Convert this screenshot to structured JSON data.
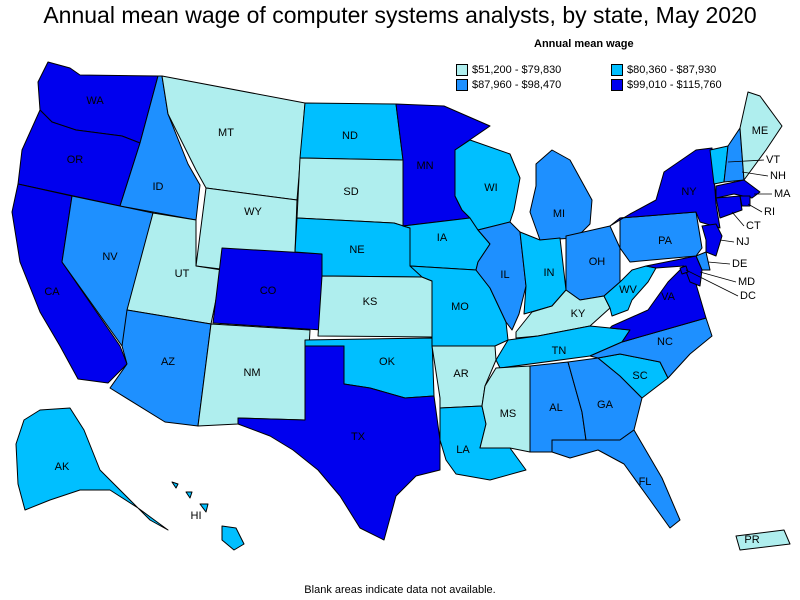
{
  "title": "Annual mean wage of computer systems analysts, by state, May 2020",
  "legend": {
    "title": "Annual mean wage",
    "items": [
      {
        "range": "$51,200 - $79,830",
        "color": "#afeeee"
      },
      {
        "range": "$80,360 - $87,930",
        "color": "#00bfff"
      },
      {
        "range": "$87,960 - $98,470",
        "color": "#1e90ff"
      },
      {
        "range": "$99,010 - $115,760",
        "color": "#0000ee"
      }
    ]
  },
  "footnote": "Blank areas indicate data not available.",
  "states": [
    {
      "code": "WA",
      "bin": 3
    },
    {
      "code": "OR",
      "bin": 3
    },
    {
      "code": "CA",
      "bin": 3
    },
    {
      "code": "ID",
      "bin": 2
    },
    {
      "code": "NV",
      "bin": 2
    },
    {
      "code": "MT",
      "bin": 0
    },
    {
      "code": "WY",
      "bin": 0
    },
    {
      "code": "UT",
      "bin": 0
    },
    {
      "code": "AZ",
      "bin": 2
    },
    {
      "code": "CO",
      "bin": 3
    },
    {
      "code": "NM",
      "bin": 0
    },
    {
      "code": "ND",
      "bin": 1
    },
    {
      "code": "SD",
      "bin": 0
    },
    {
      "code": "NE",
      "bin": 1
    },
    {
      "code": "KS",
      "bin": 0
    },
    {
      "code": "OK",
      "bin": 1
    },
    {
      "code": "TX",
      "bin": 3
    },
    {
      "code": "MN",
      "bin": 3
    },
    {
      "code": "IA",
      "bin": 1
    },
    {
      "code": "MO",
      "bin": 1
    },
    {
      "code": "AR",
      "bin": 0
    },
    {
      "code": "LA",
      "bin": 1
    },
    {
      "code": "WI",
      "bin": 1
    },
    {
      "code": "IL",
      "bin": 2
    },
    {
      "code": "MI",
      "bin": 2
    },
    {
      "code": "IN",
      "bin": 1
    },
    {
      "code": "OH",
      "bin": 2
    },
    {
      "code": "KY",
      "bin": 0
    },
    {
      "code": "TN",
      "bin": 1
    },
    {
      "code": "MS",
      "bin": 0
    },
    {
      "code": "AL",
      "bin": 2
    },
    {
      "code": "GA",
      "bin": 2
    },
    {
      "code": "FL",
      "bin": 2
    },
    {
      "code": "SC",
      "bin": 1
    },
    {
      "code": "NC",
      "bin": 2
    },
    {
      "code": "VA",
      "bin": 3
    },
    {
      "code": "WV",
      "bin": 1
    },
    {
      "code": "PA",
      "bin": 2
    },
    {
      "code": "NY",
      "bin": 3
    },
    {
      "code": "VT",
      "bin": 1
    },
    {
      "code": "NH",
      "bin": 2
    },
    {
      "code": "ME",
      "bin": 0
    },
    {
      "code": "MA",
      "bin": 3
    },
    {
      "code": "RI",
      "bin": 3
    },
    {
      "code": "CT",
      "bin": 3
    },
    {
      "code": "NJ",
      "bin": 3
    },
    {
      "code": "DE",
      "bin": 2
    },
    {
      "code": "MD",
      "bin": 3
    },
    {
      "code": "DC",
      "bin": 3
    },
    {
      "code": "AK",
      "bin": 1
    },
    {
      "code": "HI",
      "bin": 1
    },
    {
      "code": "PR",
      "bin": 0
    }
  ]
}
